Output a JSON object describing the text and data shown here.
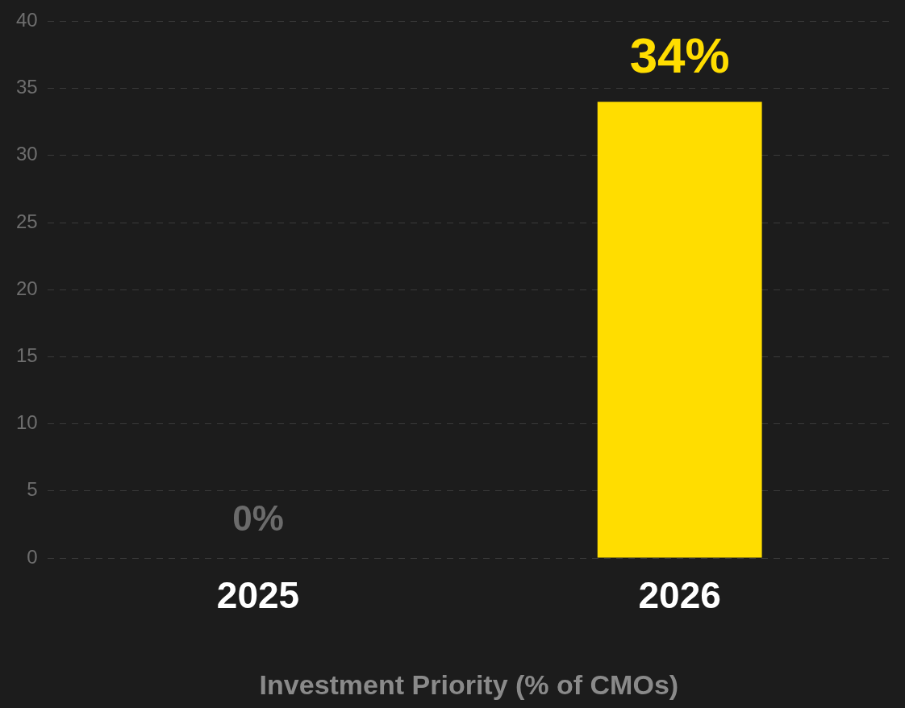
{
  "chart_data": {
    "type": "bar",
    "xlabel": "Investment Priority (% of CMOs)",
    "categories": [
      "2025",
      "2026"
    ],
    "values": [
      0,
      34
    ],
    "colors": [
      "#6b6b6b",
      "#ffdd00"
    ],
    "value_labels": [
      "0%",
      "34%"
    ],
    "ylim": [
      0,
      40
    ],
    "yticks": [
      0,
      5,
      10,
      15,
      20,
      25,
      30,
      35,
      40
    ],
    "grid": "y",
    "legend": false
  }
}
